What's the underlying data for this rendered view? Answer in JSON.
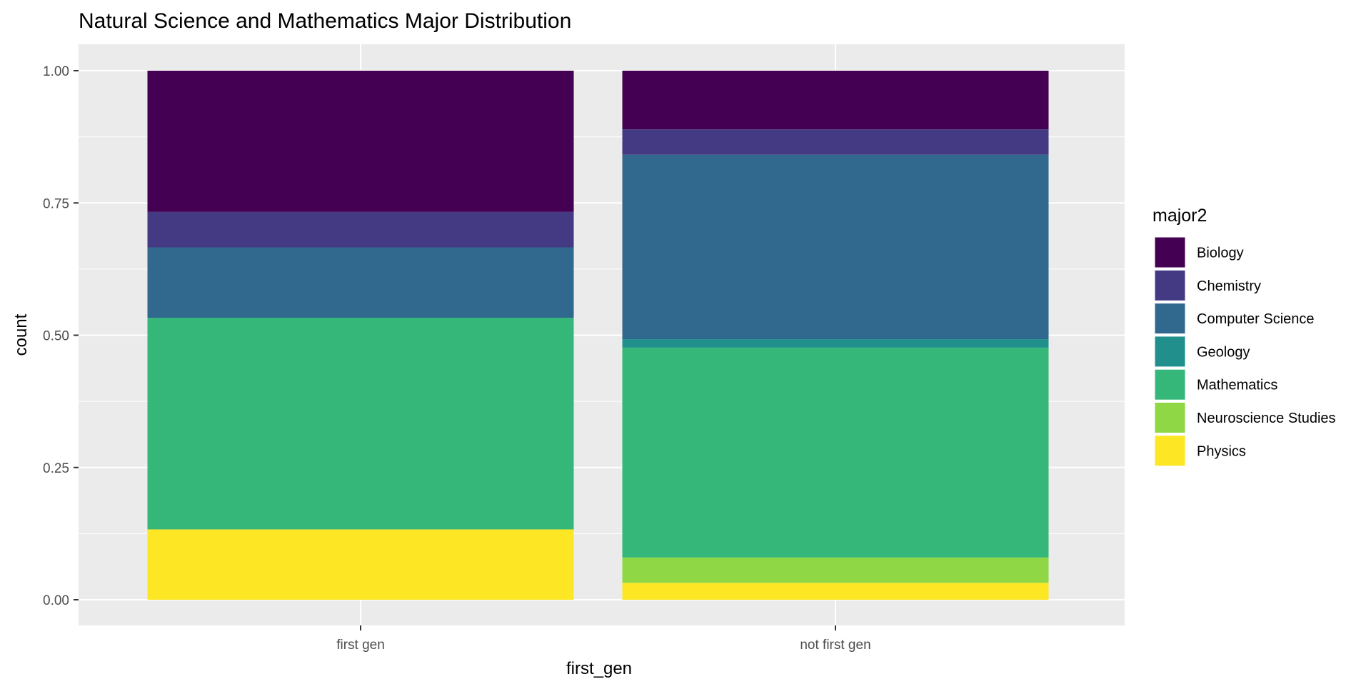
{
  "chart_data": {
    "type": "bar",
    "stacking": "fill",
    "title": "Natural Science and Mathematics Major Distribution",
    "xlabel": "first_gen",
    "ylabel": "count",
    "categories": [
      "first gen",
      "not first gen"
    ],
    "ylim": [
      0,
      1
    ],
    "yticks": [
      "0.00",
      "0.25",
      "0.50",
      "0.75",
      "1.00"
    ],
    "grid": true,
    "legend": {
      "title": "major2",
      "placement": "right",
      "items": [
        "Biology",
        "Chemistry",
        "Computer Science",
        "Geology",
        "Mathematics",
        "Neuroscience Studies",
        "Physics"
      ]
    },
    "series": [
      {
        "name": "Biology",
        "color": "#440154",
        "values": [
          0.267,
          0.111
        ]
      },
      {
        "name": "Chemistry",
        "color": "#443A83",
        "values": [
          0.067,
          0.048
        ]
      },
      {
        "name": "Computer Science",
        "color": "#31688E",
        "values": [
          0.133,
          0.349
        ]
      },
      {
        "name": "Geology",
        "color": "#21908C",
        "values": [
          0.0,
          0.016
        ]
      },
      {
        "name": "Mathematics",
        "color": "#35B779",
        "values": [
          0.4,
          0.397
        ]
      },
      {
        "name": "Neuroscience Studies",
        "color": "#8FD744",
        "values": [
          0.0,
          0.048
        ]
      },
      {
        "name": "Physics",
        "color": "#FDE725",
        "values": [
          0.133,
          0.032
        ]
      }
    ],
    "panel_background": "#EBEBEB",
    "gridline_color": "#FFFFFF"
  }
}
